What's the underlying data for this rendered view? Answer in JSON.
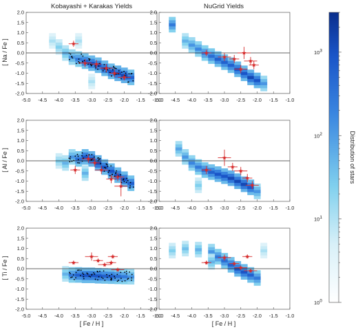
{
  "chart_data": {
    "type": "heatmap",
    "columns": [
      {
        "title": "Kobayashi + Karakas Yields"
      },
      {
        "title": "NuGrid Yields"
      }
    ],
    "rows": [
      {
        "ylabel": "[ Na / Fe ]",
        "ylim": [
          -2.0,
          2.0
        ]
      },
      {
        "ylabel": "[ Al / Fe ]",
        "ylim": [
          -2.0,
          2.0
        ]
      },
      {
        "ylabel": "[ Ti / Fe ]",
        "ylim": [
          -2.0,
          2.0
        ]
      }
    ],
    "xlabel": "[ Fe / H ]",
    "xlim": [
      -5.0,
      -1.0
    ],
    "x_ticks": [
      "-5.0",
      "-4.5",
      "-4.0",
      "-3.5",
      "-3.0",
      "-2.5",
      "-2.0",
      "-1.5",
      "-1.0"
    ],
    "y_ticks": [
      "2.0",
      "1.5",
      "1.0",
      "0.5",
      "0.0",
      "-0.5",
      "-1.0",
      "-1.5",
      "-2.0"
    ],
    "reference_line_y": 0.0,
    "colorbar": {
      "label": "Distribution of stars",
      "scale": "log",
      "range": [
        1,
        3000
      ],
      "tick_labels": [
        "10^0",
        "10^1",
        "10^2",
        "10^3"
      ],
      "color_low": "#ffffff",
      "color_high": "#0a2e8c"
    },
    "observations_color": "#d62b2b",
    "panels": [
      {
        "row": 0,
        "col": 0,
        "distribution": [
          {
            "x": -4.2,
            "y": 0.6,
            "level": 0.3
          },
          {
            "x": -4.0,
            "y": 0.3,
            "level": 0.4
          },
          {
            "x": -3.8,
            "y": 0.0,
            "level": 0.5
          },
          {
            "x": -3.6,
            "y": -0.2,
            "level": 0.6
          },
          {
            "x": -3.4,
            "y": -0.3,
            "level": 0.7
          },
          {
            "x": -3.2,
            "y": -0.4,
            "level": 0.8
          },
          {
            "x": -3.0,
            "y": -0.5,
            "level": 0.85
          },
          {
            "x": -2.8,
            "y": -0.6,
            "level": 0.85
          },
          {
            "x": -2.6,
            "y": -0.75,
            "level": 0.85
          },
          {
            "x": -2.4,
            "y": -0.9,
            "level": 0.85
          },
          {
            "x": -2.2,
            "y": -1.0,
            "level": 0.9
          },
          {
            "x": -2.0,
            "y": -1.1,
            "level": 0.9
          },
          {
            "x": -1.8,
            "y": -1.2,
            "level": 0.8
          },
          {
            "x": -3.4,
            "y": 0.6,
            "level": 0.3
          },
          {
            "x": -3.0,
            "y": -1.4,
            "level": 0.3
          }
        ],
        "simulated_stars": true,
        "observations": [
          {
            "x": -3.55,
            "y": 0.45,
            "xerr": 0.15,
            "yerr": 0.15
          },
          {
            "x": -3.2,
            "y": -0.5,
            "xerr": 0.2,
            "yerr": 0.2
          },
          {
            "x": -2.85,
            "y": -0.55,
            "xerr": 0.15,
            "yerr": 0.2
          },
          {
            "x": -2.55,
            "y": -0.75,
            "xerr": 0.2,
            "yerr": 0.2
          },
          {
            "x": -2.3,
            "y": -1.0,
            "xerr": 0.15,
            "yerr": 0.2
          },
          {
            "x": -2.0,
            "y": -1.2,
            "xerr": 0.2,
            "yerr": 0.15
          }
        ]
      },
      {
        "row": 0,
        "col": 1,
        "distribution": [
          {
            "x": -4.6,
            "y": 1.4,
            "level": 0.7
          },
          {
            "x": -4.2,
            "y": 0.6,
            "level": 0.5
          },
          {
            "x": -4.0,
            "y": 0.4,
            "level": 0.6
          },
          {
            "x": -3.8,
            "y": 0.2,
            "level": 0.65
          },
          {
            "x": -3.6,
            "y": 0.0,
            "level": 0.7
          },
          {
            "x": -3.4,
            "y": -0.15,
            "level": 0.75
          },
          {
            "x": -3.2,
            "y": -0.3,
            "level": 0.8
          },
          {
            "x": -3.0,
            "y": -0.45,
            "level": 0.8
          },
          {
            "x": -2.8,
            "y": -0.6,
            "level": 0.8
          },
          {
            "x": -2.6,
            "y": -0.8,
            "level": 0.85
          },
          {
            "x": -2.4,
            "y": -1.0,
            "level": 0.85
          },
          {
            "x": -2.2,
            "y": -1.2,
            "level": 0.9
          },
          {
            "x": -2.0,
            "y": -1.35,
            "level": 0.85
          },
          {
            "x": -1.8,
            "y": -1.5,
            "level": 0.6
          }
        ],
        "simulated_stars": false,
        "observations": [
          {
            "x": -3.55,
            "y": 0.0,
            "xerr": 0.15,
            "yerr": 0.15
          },
          {
            "x": -3.0,
            "y": -0.2,
            "xerr": 0.2,
            "yerr": 0.2
          },
          {
            "x": -2.7,
            "y": -0.3,
            "xerr": 0.15,
            "yerr": 0.2
          },
          {
            "x": -2.4,
            "y": 0.0,
            "xerr": 0.2,
            "yerr": 0.3
          },
          {
            "x": -2.2,
            "y": -0.4,
            "xerr": 0.2,
            "yerr": 0.2
          },
          {
            "x": -2.1,
            "y": -0.6,
            "xerr": 0.15,
            "yerr": 0.2
          },
          {
            "x": -2.5,
            "y": -0.8,
            "xerr": 0.2,
            "yerr": 0.2
          }
        ]
      },
      {
        "row": 1,
        "col": 0,
        "distribution": [
          {
            "x": -4.0,
            "y": 0.0,
            "level": 0.4
          },
          {
            "x": -3.8,
            "y": -0.1,
            "level": 0.5
          },
          {
            "x": -3.6,
            "y": 0.2,
            "level": 0.6
          },
          {
            "x": -3.4,
            "y": 0.1,
            "level": 0.75
          },
          {
            "x": -3.2,
            "y": 0.2,
            "level": 0.85
          },
          {
            "x": -3.0,
            "y": 0.1,
            "level": 0.9
          },
          {
            "x": -2.8,
            "y": -0.1,
            "level": 0.9
          },
          {
            "x": -2.6,
            "y": -0.3,
            "level": 0.85
          },
          {
            "x": -2.4,
            "y": -0.5,
            "level": 0.85
          },
          {
            "x": -2.2,
            "y": -0.7,
            "level": 0.85
          },
          {
            "x": -2.0,
            "y": -0.9,
            "level": 0.85
          },
          {
            "x": -1.8,
            "y": -1.1,
            "level": 0.8
          },
          {
            "x": -3.2,
            "y": -0.6,
            "level": 0.5
          }
        ],
        "simulated_stars": true,
        "observations": [
          {
            "x": -3.5,
            "y": -0.45,
            "xerr": 0.15,
            "yerr": 0.2
          },
          {
            "x": -3.1,
            "y": 0.1,
            "xerr": 0.2,
            "yerr": 0.2
          },
          {
            "x": -2.9,
            "y": -0.1,
            "xerr": 0.15,
            "yerr": 0.2
          },
          {
            "x": -2.7,
            "y": -0.45,
            "xerr": 0.2,
            "yerr": 0.2
          },
          {
            "x": -2.4,
            "y": -0.9,
            "xerr": 0.15,
            "yerr": 0.2
          },
          {
            "x": -2.2,
            "y": -0.8,
            "xerr": 0.2,
            "yerr": 0.2
          },
          {
            "x": -2.1,
            "y": -1.25,
            "xerr": 0.2,
            "yerr": 0.5
          }
        ]
      },
      {
        "row": 1,
        "col": 1,
        "distribution": [
          {
            "x": -4.4,
            "y": 0.6,
            "level": 0.55
          },
          {
            "x": -4.2,
            "y": 0.2,
            "level": 0.6
          },
          {
            "x": -4.0,
            "y": -0.1,
            "level": 0.65
          },
          {
            "x": -3.8,
            "y": -0.3,
            "level": 0.7
          },
          {
            "x": -3.6,
            "y": -0.45,
            "level": 0.75
          },
          {
            "x": -3.4,
            "y": -0.55,
            "level": 0.8
          },
          {
            "x": -3.2,
            "y": -0.65,
            "level": 0.85
          },
          {
            "x": -3.0,
            "y": -0.75,
            "level": 0.85
          },
          {
            "x": -2.8,
            "y": -0.85,
            "level": 0.9
          },
          {
            "x": -2.6,
            "y": -1.0,
            "level": 0.9
          },
          {
            "x": -2.4,
            "y": -1.15,
            "level": 0.9
          },
          {
            "x": -2.2,
            "y": -1.3,
            "level": 0.85
          },
          {
            "x": -2.0,
            "y": -1.5,
            "level": 0.6
          },
          {
            "x": -3.8,
            "y": -1.2,
            "level": 0.4
          }
        ],
        "simulated_stars": false,
        "observations": [
          {
            "x": -3.55,
            "y": -0.45,
            "xerr": 0.15,
            "yerr": 0.2
          },
          {
            "x": -3.0,
            "y": 0.15,
            "xerr": 0.2,
            "yerr": 0.4
          },
          {
            "x": -2.75,
            "y": -0.3,
            "xerr": 0.15,
            "yerr": 0.2
          },
          {
            "x": -2.5,
            "y": -0.5,
            "xerr": 0.2,
            "yerr": 0.2
          },
          {
            "x": -2.3,
            "y": -0.85,
            "xerr": 0.15,
            "yerr": 0.2
          },
          {
            "x": -2.15,
            "y": -1.2,
            "xerr": 0.2,
            "yerr": 0.2
          }
        ]
      },
      {
        "row": 2,
        "col": 0,
        "distribution": [
          {
            "x": -3.8,
            "y": -0.25,
            "level": 0.5
          },
          {
            "x": -3.6,
            "y": -0.3,
            "level": 0.7
          },
          {
            "x": -3.4,
            "y": -0.3,
            "level": 0.8
          },
          {
            "x": -3.2,
            "y": -0.32,
            "level": 0.85
          },
          {
            "x": -3.0,
            "y": -0.32,
            "level": 0.85
          },
          {
            "x": -2.8,
            "y": -0.34,
            "level": 0.85
          },
          {
            "x": -2.6,
            "y": -0.35,
            "level": 0.8
          },
          {
            "x": -2.4,
            "y": -0.36,
            "level": 0.8
          },
          {
            "x": -2.2,
            "y": -0.37,
            "level": 0.75
          },
          {
            "x": -2.0,
            "y": -0.38,
            "level": 0.7
          },
          {
            "x": -1.8,
            "y": -0.39,
            "level": 0.6
          }
        ],
        "simulated_stars": true,
        "observations": [
          {
            "x": -3.55,
            "y": 0.3,
            "xerr": 0.15,
            "yerr": 0.1
          },
          {
            "x": -3.0,
            "y": 0.6,
            "xerr": 0.2,
            "yerr": 0.2
          },
          {
            "x": -2.8,
            "y": 0.4,
            "xerr": 0.15,
            "yerr": 0.1
          },
          {
            "x": -2.6,
            "y": 0.2,
            "xerr": 0.2,
            "yerr": 0.1
          },
          {
            "x": -2.4,
            "y": 0.3,
            "xerr": 0.15,
            "yerr": 0.1
          },
          {
            "x": -2.2,
            "y": -0.05,
            "xerr": 0.2,
            "yerr": 0.1
          },
          {
            "x": -2.35,
            "y": 0.6,
            "xerr": 0.15,
            "yerr": 0.1
          }
        ]
      },
      {
        "row": 2,
        "col": 1,
        "distribution": [
          {
            "x": -4.6,
            "y": 0.9,
            "level": 0.4
          },
          {
            "x": -4.2,
            "y": 1.0,
            "level": 0.45
          },
          {
            "x": -3.8,
            "y": 0.95,
            "level": 0.5
          },
          {
            "x": -3.4,
            "y": 0.85,
            "level": 0.6
          },
          {
            "x": -3.2,
            "y": 0.6,
            "level": 0.7
          },
          {
            "x": -3.0,
            "y": 0.4,
            "level": 0.75
          },
          {
            "x": -2.8,
            "y": 0.2,
            "level": 0.8
          },
          {
            "x": -2.6,
            "y": 0.0,
            "level": 0.85
          },
          {
            "x": -2.4,
            "y": -0.15,
            "level": 0.85
          },
          {
            "x": -2.2,
            "y": -0.3,
            "level": 0.8
          },
          {
            "x": -2.0,
            "y": -0.45,
            "level": 0.7
          },
          {
            "x": -1.8,
            "y": 0.9,
            "level": 0.3
          },
          {
            "x": -3.4,
            "y": 0.35,
            "level": 0.5
          }
        ],
        "simulated_stars": false,
        "observations": [
          {
            "x": -3.55,
            "y": 0.3,
            "xerr": 0.15,
            "yerr": 0.1
          },
          {
            "x": -3.0,
            "y": 0.55,
            "xerr": 0.2,
            "yerr": 0.15
          },
          {
            "x": -2.7,
            "y": 0.25,
            "xerr": 0.15,
            "yerr": 0.1
          },
          {
            "x": -2.5,
            "y": 0.05,
            "xerr": 0.2,
            "yerr": 0.1
          },
          {
            "x": -2.3,
            "y": 0.6,
            "xerr": 0.15,
            "yerr": 0.1
          },
          {
            "x": -2.2,
            "y": -0.1,
            "xerr": 0.2,
            "yerr": 0.1
          }
        ]
      }
    ]
  }
}
